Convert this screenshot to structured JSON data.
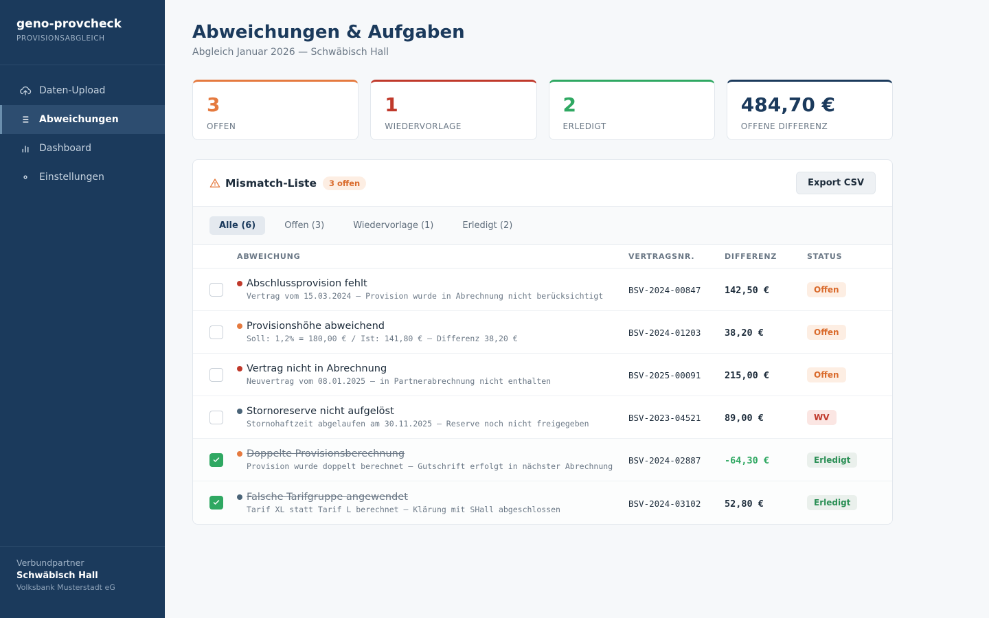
{
  "brand": {
    "title": "geno-provcheck",
    "subtitle": "PROVISIONSABGLEICH"
  },
  "nav": [
    {
      "label": "Daten-Upload",
      "icon": "cloud-upload-icon",
      "active": false
    },
    {
      "label": "Abweichungen",
      "icon": "list-icon",
      "active": true
    },
    {
      "label": "Dashboard",
      "icon": "bar-chart-icon",
      "active": false
    },
    {
      "label": "Einstellungen",
      "icon": "gear-icon",
      "active": false
    }
  ],
  "footer": {
    "label": "Verbundpartner",
    "name": "Schwäbisch Hall",
    "bank": "Volksbank Musterstadt eG"
  },
  "page": {
    "title": "Abweichungen & Aufgaben",
    "subtitle": "Abgleich Januar 2026 — Schwäbisch Hall"
  },
  "kpis": [
    {
      "value": "3",
      "label": "OFFEN",
      "color": "#e57a3f"
    },
    {
      "value": "1",
      "label": "WIEDERVORLAGE",
      "color": "#c0392b"
    },
    {
      "value": "2",
      "label": "ERLEDIGT",
      "color": "#2fa862"
    },
    {
      "value": "484,70 €",
      "label": "OFFENE DIFFERENZ",
      "color": "#1b3a5c"
    }
  ],
  "mismatch": {
    "title": "Mismatch-Liste",
    "badge": "3 offen",
    "export_label": "Export CSV",
    "filters": [
      "Alle (6)",
      "Offen (3)",
      "Wiedervorlage (1)",
      "Erledigt (2)"
    ],
    "columns": {
      "abweichung": "ABWEICHUNG",
      "vertragsnr": "VERTRAGSNR.",
      "differenz": "DIFFERENZ",
      "status": "STATUS"
    },
    "rows": [
      {
        "title": "Abschlussprovision fehlt",
        "desc": "Vertrag vom 15.03.2024 – Provision wurde in Abrechnung nicht berücksichtigt",
        "vertragsnr": "BSV-2024-00847",
        "differenz": "142,50 €",
        "status": "Offen",
        "dot": "#c0392b",
        "checked": false
      },
      {
        "title": "Provisionshöhe abweichend",
        "desc": "Soll: 1,2% = 180,00 € / Ist: 141,80 € – Differenz 38,20 €",
        "vertragsnr": "BSV-2024-01203",
        "differenz": "38,20 €",
        "status": "Offen",
        "dot": "#e57a3f",
        "checked": false
      },
      {
        "title": "Vertrag nicht in Abrechnung",
        "desc": "Neuvertrag vom 08.01.2025 – in Partnerabrechnung nicht enthalten",
        "vertragsnr": "BSV-2025-00091",
        "differenz": "215,00 €",
        "status": "Offen",
        "dot": "#c0392b",
        "checked": false
      },
      {
        "title": "Stornoreserve nicht aufgelöst",
        "desc": "Stornohaftzeit abgelaufen am 30.11.2025 – Reserve noch nicht freigegeben",
        "vertragsnr": "BSV-2023-04521",
        "differenz": "89,00 €",
        "status": "WV",
        "dot": "#4a6478",
        "checked": false
      },
      {
        "title": "Doppelte Provisionsberechnung",
        "desc": "Provision wurde doppelt berechnet – Gutschrift erfolgt in nächster Abrechnung",
        "vertragsnr": "BSV-2024-02887",
        "differenz": "-64,30 €",
        "status": "Erledigt",
        "dot": "#e57a3f",
        "checked": true
      },
      {
        "title": "Falsche Tarifgruppe angewendet",
        "desc": "Tarif XL statt Tarif L berechnet – Klärung mit SHall abgeschlossen",
        "vertragsnr": "BSV-2024-03102",
        "differenz": "52,80 €",
        "status": "Erledigt",
        "dot": "#4a6478",
        "checked": true
      }
    ]
  }
}
